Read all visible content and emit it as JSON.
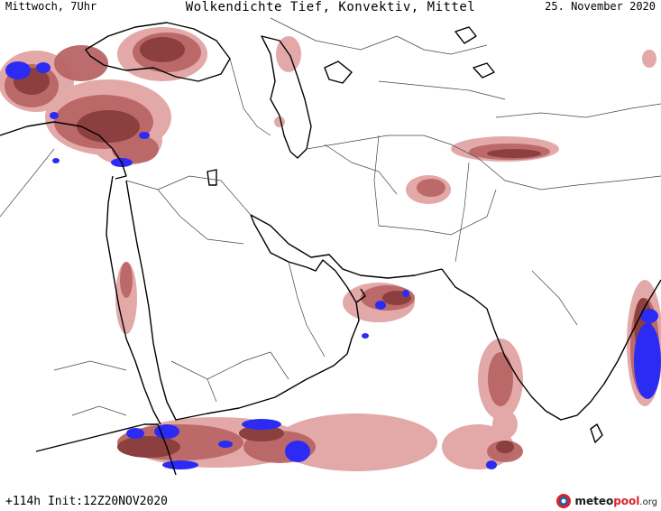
{
  "header": {
    "left_label": "Mittwoch, 7Uhr",
    "title": "Wolkendichte   Tief, Konvektiv, Mittel",
    "date": "25. November 2020"
  },
  "footer": {
    "run_label": "+114h Init:12Z20NOV2020",
    "logo_word": "meteo",
    "logo_accent": "pool",
    "logo_tld": ".org"
  },
  "map": {
    "region": "Middle East / Arabian Peninsula / South Asia",
    "legend_colors": {
      "light": "#e2a4a4",
      "medium": "#b96565",
      "dense": "#8c3f3f",
      "convective": "#2b2bf4"
    }
  }
}
